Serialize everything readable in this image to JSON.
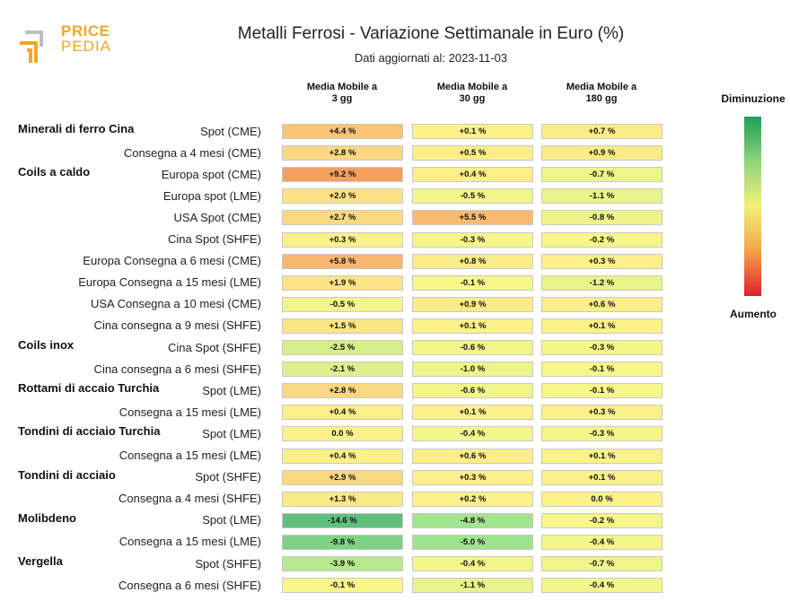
{
  "logo": {
    "line1": "PRICE",
    "line2": "PEDIA"
  },
  "header": {
    "title": "Metalli Ferrosi - Variazione Settimanale in Euro (%)",
    "subtitle": "Dati aggiornati al: 2023-11-03"
  },
  "legend": {
    "top": "Diminuzione",
    "bottom": "Aumento"
  },
  "chart_data": {
    "type": "heatmap",
    "columns": [
      {
        "line1": "Media Mobile a",
        "line2": "3 gg"
      },
      {
        "line1": "Media Mobile a",
        "line2": "30 gg"
      },
      {
        "line1": "Media Mobile a",
        "line2": "180 gg"
      }
    ],
    "rows": [
      {
        "group": "Minerali di ferro Cina",
        "label": "Spot (CME)",
        "values": [
          4.4,
          0.1,
          0.7
        ],
        "texts": [
          "+4.4 %",
          "+0.1 %",
          "+0.7 %"
        ]
      },
      {
        "group": "",
        "label": "Consegna a 4 mesi (CME)",
        "values": [
          2.8,
          0.5,
          0.9
        ],
        "texts": [
          "+2.8 %",
          "+0.5 %",
          "+0.9 %"
        ]
      },
      {
        "group": "Coils a caldo",
        "label": "Europa spot (CME)",
        "values": [
          9.2,
          0.4,
          -0.7
        ],
        "texts": [
          "+9.2 %",
          "+0.4 %",
          "-0.7 %"
        ]
      },
      {
        "group": "",
        "label": "Europa spot (LME)",
        "values": [
          2.0,
          -0.5,
          -1.1
        ],
        "texts": [
          "+2.0 %",
          "-0.5 %",
          "-1.1 %"
        ]
      },
      {
        "group": "",
        "label": "USA Spot (CME)",
        "values": [
          2.7,
          5.5,
          -0.8
        ],
        "texts": [
          "+2.7 %",
          "+5.5 %",
          "-0.8 %"
        ]
      },
      {
        "group": "",
        "label": "Cina Spot (SHFE)",
        "values": [
          0.3,
          -0.3,
          -0.2
        ],
        "texts": [
          "+0.3 %",
          "-0.3 %",
          "-0.2 %"
        ]
      },
      {
        "group": "",
        "label": "Europa Consegna a 6 mesi (CME)",
        "values": [
          5.8,
          0.8,
          0.3
        ],
        "texts": [
          "+5.8 %",
          "+0.8 %",
          "+0.3 %"
        ]
      },
      {
        "group": "",
        "label": "Europa Consegna a 15 mesi (LME)",
        "values": [
          1.9,
          -0.1,
          -1.2
        ],
        "texts": [
          "+1.9 %",
          "-0.1 %",
          "-1.2 %"
        ]
      },
      {
        "group": "",
        "label": "USA Consegna a 10 mesi (CME)",
        "values": [
          -0.5,
          0.9,
          0.6
        ],
        "texts": [
          "-0.5 %",
          "+0.9 %",
          "+0.6 %"
        ]
      },
      {
        "group": "",
        "label": "Cina consegna a 9 mesi (SHFE)",
        "values": [
          1.5,
          0.1,
          0.1
        ],
        "texts": [
          "+1.5 %",
          "+0.1 %",
          "+0.1 %"
        ]
      },
      {
        "group": "Coils inox",
        "label": "Cina Spot (SHFE)",
        "values": [
          -2.5,
          -0.6,
          -0.3
        ],
        "texts": [
          "-2.5 %",
          "-0.6 %",
          "-0.3 %"
        ]
      },
      {
        "group": "",
        "label": "Cina consegna a 6 mesi (SHFE)",
        "values": [
          -2.1,
          -1.0,
          -0.1
        ],
        "texts": [
          "-2.1 %",
          "-1.0 %",
          "-0.1 %"
        ]
      },
      {
        "group": "Rottami di accaio Turchia",
        "label": "Spot (LME)",
        "values": [
          2.8,
          -0.6,
          -0.1
        ],
        "texts": [
          "+2.8 %",
          "-0.6 %",
          "-0.1 %"
        ]
      },
      {
        "group": "",
        "label": "Consegna a 15 mesi (LME)",
        "values": [
          0.4,
          0.1,
          0.3
        ],
        "texts": [
          "+0.4 %",
          "+0.1 %",
          "+0.3 %"
        ]
      },
      {
        "group": "Tondini di acciaio Turchia",
        "label": "Spot (LME)",
        "values": [
          0.0,
          -0.4,
          -0.3
        ],
        "texts": [
          "0.0 %",
          "-0.4 %",
          "-0.3 %"
        ]
      },
      {
        "group": "",
        "label": "Consegna a 15 mesi (LME)",
        "values": [
          0.4,
          0.6,
          0.1
        ],
        "texts": [
          "+0.4 %",
          "+0.6 %",
          "+0.1 %"
        ]
      },
      {
        "group": "Tondini di acciaio",
        "label": "Spot (SHFE)",
        "values": [
          2.9,
          0.3,
          0.1
        ],
        "texts": [
          "+2.9 %",
          "+0.3 %",
          "+0.1 %"
        ]
      },
      {
        "group": "",
        "label": "Consegna a 4 mesi (SHFE)",
        "values": [
          1.3,
          0.2,
          0.0
        ],
        "texts": [
          "+1.3 %",
          "+0.2 %",
          "0.0 %"
        ]
      },
      {
        "group": "Molibdeno",
        "label": "Spot (LME)",
        "values": [
          -14.6,
          -4.8,
          -0.2
        ],
        "texts": [
          "-14.6 %",
          "-4.8 %",
          "-0.2 %"
        ]
      },
      {
        "group": "",
        "label": "Consegna a 15 mesi (LME)",
        "values": [
          -9.8,
          -5.0,
          -0.4
        ],
        "texts": [
          "-9.8 %",
          "-5.0 %",
          "-0.4 %"
        ]
      },
      {
        "group": "Vergella",
        "label": "Spot (SHFE)",
        "values": [
          -3.9,
          -0.4,
          -0.7
        ],
        "texts": [
          "-3.9 %",
          "-0.4 %",
          "-0.7 %"
        ]
      },
      {
        "group": "",
        "label": "Consegna a 6 mesi (SHFE)",
        "values": [
          -0.1,
          -1.1,
          -0.4
        ],
        "texts": [
          "-0.1 %",
          "-1.1 %",
          "-0.4 %"
        ]
      }
    ],
    "color_scale": {
      "negative": "#1e9e5a",
      "neutral": "#f2f07a",
      "positive": "#e0202c"
    }
  }
}
